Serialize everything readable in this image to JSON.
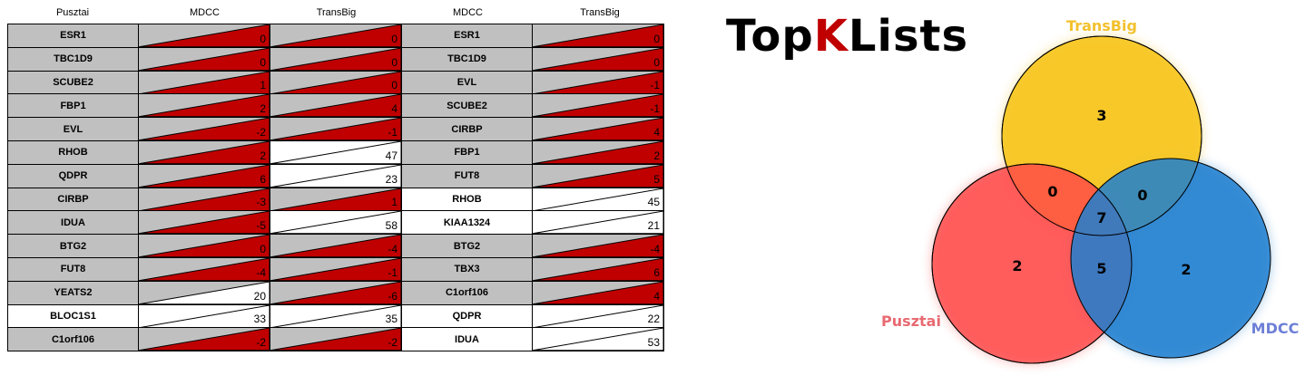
{
  "headers": [
    "Pusztai",
    "MDCC",
    "TransBig",
    "MDCC",
    "TransBig"
  ],
  "rows": [
    {
      "left_name": "ESR1",
      "left_shade": "gray",
      "mdcc1": "0",
      "mdcc1_color": "red",
      "transbig1": "0",
      "transbig1_color": "red",
      "right_name": "ESR1",
      "right_shade": "gray",
      "transbig2": "0",
      "transbig2_color": "red"
    },
    {
      "left_name": "TBC1D9",
      "left_shade": "gray",
      "mdcc1": "0",
      "mdcc1_color": "red",
      "transbig1": "0",
      "transbig1_color": "red",
      "right_name": "TBC1D9",
      "right_shade": "gray",
      "transbig2": "0",
      "transbig2_color": "red"
    },
    {
      "left_name": "SCUBE2",
      "left_shade": "gray",
      "mdcc1": "1",
      "mdcc1_color": "red",
      "transbig1": "0",
      "transbig1_color": "red",
      "right_name": "EVL",
      "right_shade": "gray",
      "transbig2": "-1",
      "transbig2_color": "red"
    },
    {
      "left_name": "FBP1",
      "left_shade": "gray",
      "mdcc1": "2",
      "mdcc1_color": "red",
      "transbig1": "4",
      "transbig1_color": "red",
      "right_name": "SCUBE2",
      "right_shade": "gray",
      "transbig2": "-1",
      "transbig2_color": "red"
    },
    {
      "left_name": "EVL",
      "left_shade": "gray",
      "mdcc1": "-2",
      "mdcc1_color": "red",
      "transbig1": "-1",
      "transbig1_color": "red",
      "right_name": "CIRBP",
      "right_shade": "gray",
      "transbig2": "4",
      "transbig2_color": "red"
    },
    {
      "left_name": "RHOB",
      "left_shade": "gray",
      "mdcc1": "2",
      "mdcc1_color": "red",
      "transbig1": "47",
      "transbig1_color": "white",
      "right_name": "FBP1",
      "right_shade": "gray",
      "transbig2": "2",
      "transbig2_color": "red"
    },
    {
      "left_name": "QDPR",
      "left_shade": "gray",
      "mdcc1": "6",
      "mdcc1_color": "red",
      "transbig1": "23",
      "transbig1_color": "white",
      "right_name": "FUT8",
      "right_shade": "gray",
      "transbig2": "5",
      "transbig2_color": "red"
    },
    {
      "left_name": "CIRBP",
      "left_shade": "gray",
      "mdcc1": "-3",
      "mdcc1_color": "red",
      "transbig1": "1",
      "transbig1_color": "red",
      "right_name": "RHOB",
      "right_shade": "white",
      "transbig2": "45",
      "transbig2_color": "white"
    },
    {
      "left_name": "IDUA",
      "left_shade": "gray",
      "mdcc1": "-5",
      "mdcc1_color": "red",
      "transbig1": "58",
      "transbig1_color": "white",
      "right_name": "KIAA1324",
      "right_shade": "white",
      "transbig2": "21",
      "transbig2_color": "white"
    },
    {
      "left_name": "BTG2",
      "left_shade": "gray",
      "mdcc1": "0",
      "mdcc1_color": "red",
      "transbig1": "-4",
      "transbig1_color": "red",
      "right_name": "BTG2",
      "right_shade": "gray",
      "transbig2": "-4",
      "transbig2_color": "red"
    },
    {
      "left_name": "FUT8",
      "left_shade": "gray",
      "mdcc1": "-4",
      "mdcc1_color": "red",
      "transbig1": "-1",
      "transbig1_color": "red",
      "right_name": "TBX3",
      "right_shade": "gray",
      "transbig2": "6",
      "transbig2_color": "red"
    },
    {
      "left_name": "YEATS2",
      "left_shade": "gray",
      "mdcc1": "20",
      "mdcc1_color": "white",
      "transbig1": "-6",
      "transbig1_color": "red",
      "right_name": "C1orf106",
      "right_shade": "gray",
      "transbig2": "4",
      "transbig2_color": "red"
    },
    {
      "left_name": "BLOC1S1",
      "left_shade": "white",
      "mdcc1": "33",
      "mdcc1_color": "white",
      "transbig1": "35",
      "transbig1_color": "white",
      "right_name": "QDPR",
      "right_shade": "white",
      "transbig2": "22",
      "transbig2_color": "white"
    },
    {
      "left_name": "C1orf106",
      "left_shade": "gray",
      "mdcc1": "-2",
      "mdcc1_color": "red",
      "transbig1": "-2",
      "transbig1_color": "red",
      "right_name": "IDUA",
      "right_shade": "white",
      "transbig2": "53",
      "transbig2_color": "white"
    }
  ],
  "logo": {
    "part1": "Top",
    "part2": "K",
    "part3": "Lists"
  },
  "venn": {
    "sets": [
      {
        "name": "TransBig",
        "color": "#f2c12e",
        "label_color": "#f2c12e"
      },
      {
        "name": "Pusztai",
        "color": "#ff5a5a",
        "label_color": "#e86a72"
      },
      {
        "name": "MDCC",
        "color": "#2f86cf",
        "label_color": "#6d7fd6"
      }
    ],
    "regions": {
      "transbig_only": "3",
      "pusztai_only": "2",
      "mdcc_only": "2",
      "pusztai_transbig": "0",
      "transbig_mdcc": "0",
      "pusztai_mdcc": "5",
      "all": "7"
    }
  }
}
